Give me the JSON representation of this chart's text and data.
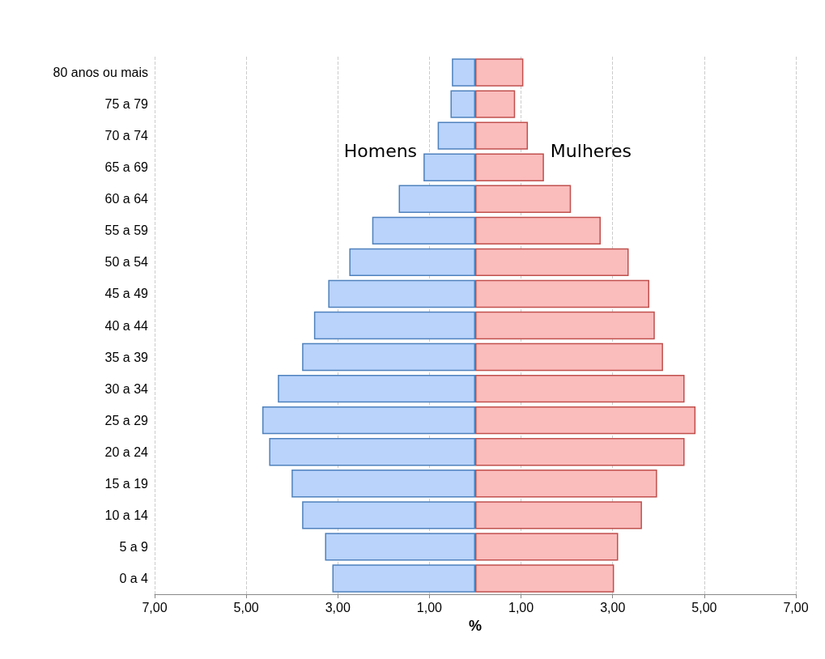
{
  "chart_data": {
    "type": "bar",
    "orientation": "horizontal",
    "xlabel": "%",
    "categories": [
      "80 anos ou mais",
      "75 a 79",
      "70 a 74",
      "65 a 69",
      "60 a 64",
      "55 a 59",
      "50 a 54",
      "45 a 49",
      "40 a 44",
      "35 a 39",
      "30 a 34",
      "25 a 29",
      "20 a 24",
      "15 a 19",
      "10 a 14",
      "5 a 9",
      "0 a 4"
    ],
    "series": [
      {
        "name": "Homens",
        "color": "#b9d3fb",
        "values": [
          -0.51,
          -0.54,
          -0.82,
          -1.13,
          -1.67,
          -2.25,
          -2.75,
          -3.21,
          -3.52,
          -3.78,
          -4.31,
          -4.65,
          -4.5,
          -4.01,
          -3.78,
          -3.28,
          -3.12
        ]
      },
      {
        "name": "Mulheres",
        "color": "#fbbcbc",
        "values": [
          1.05,
          0.87,
          1.15,
          1.5,
          2.09,
          2.74,
          3.35,
          3.8,
          3.92,
          4.1,
          4.57,
          4.81,
          4.57,
          3.97,
          3.64,
          3.12,
          3.03
        ]
      }
    ],
    "xlim": [
      -7,
      7
    ],
    "xticks": [
      {
        "value": -7,
        "label": "7,00"
      },
      {
        "value": -5,
        "label": "5,00"
      },
      {
        "value": -3,
        "label": "3,00"
      },
      {
        "value": -1,
        "label": "1,00"
      },
      {
        "value": 1,
        "label": "1,00"
      },
      {
        "value": 3,
        "label": "3,00"
      },
      {
        "value": 5,
        "label": "5,00"
      },
      {
        "value": 7,
        "label": "7,00"
      }
    ],
    "grid": "x",
    "legend": false,
    "stacked": true
  }
}
